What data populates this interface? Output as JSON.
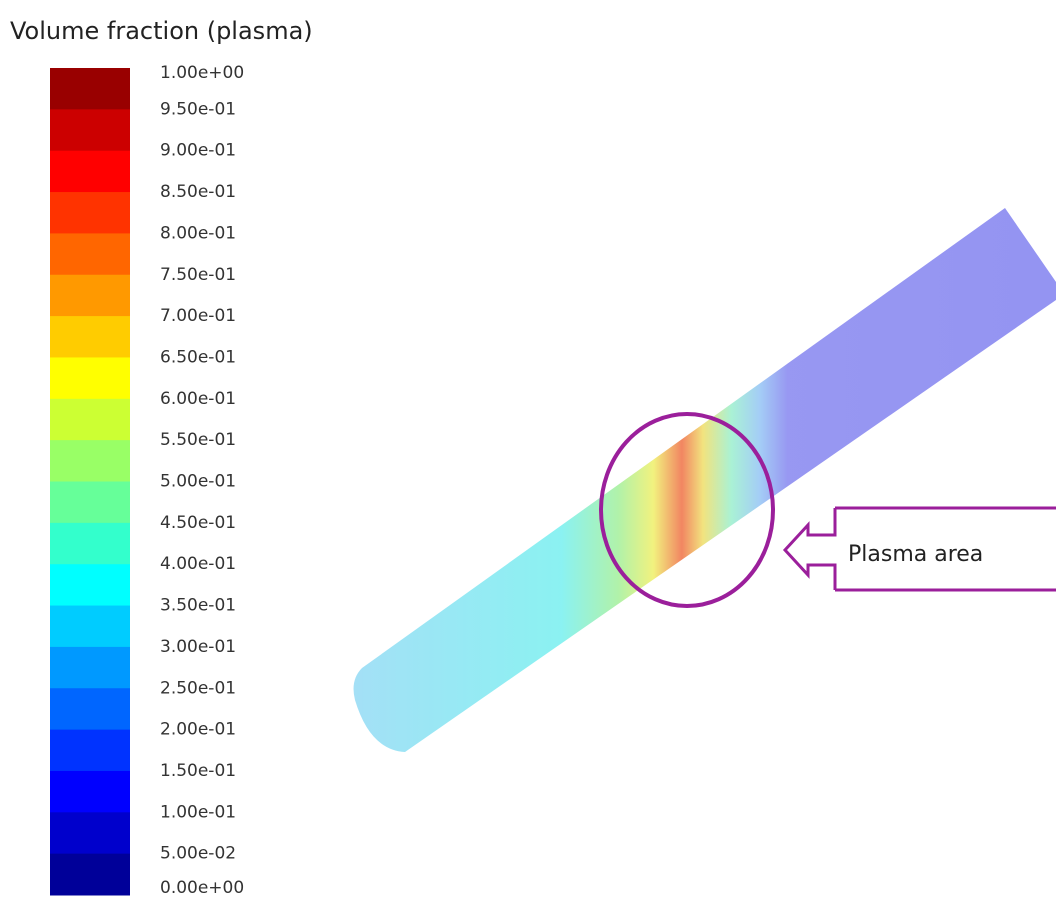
{
  "legend": {
    "title": "Volume fraction (plasma)",
    "ticks": [
      {
        "value": 1,
        "label": "1.00e+00"
      },
      {
        "value": 0.95,
        "label": "9.50e-01"
      },
      {
        "value": 0.9,
        "label": "9.00e-01"
      },
      {
        "value": 0.85,
        "label": "8.50e-01"
      },
      {
        "value": 0.8,
        "label": "8.00e-01"
      },
      {
        "value": 0.75,
        "label": "7.50e-01"
      },
      {
        "value": 0.7,
        "label": "7.00e-01"
      },
      {
        "value": 0.65,
        "label": "6.50e-01"
      },
      {
        "value": 0.6,
        "label": "6.00e-01"
      },
      {
        "value": 0.55,
        "label": "5.50e-01"
      },
      {
        "value": 0.5,
        "label": "5.00e-01"
      },
      {
        "value": 0.45,
        "label": "4.50e-01"
      },
      {
        "value": 0.4,
        "label": "4.00e-01"
      },
      {
        "value": 0.35,
        "label": "3.50e-01"
      },
      {
        "value": 0.3,
        "label": "3.00e-01"
      },
      {
        "value": 0.25,
        "label": "2.50e-01"
      },
      {
        "value": 0.2,
        "label": "2.00e-01"
      },
      {
        "value": 0.15,
        "label": "1.50e-01"
      },
      {
        "value": 0.1,
        "label": "1.00e-01"
      },
      {
        "value": 0.05,
        "label": "5.00e-02"
      },
      {
        "value": 0,
        "label": "0.00e+00"
      }
    ]
  },
  "annotation": "Plasma area"
}
